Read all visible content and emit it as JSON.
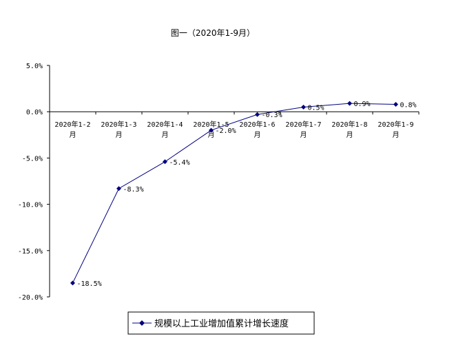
{
  "chart_data": {
    "type": "line",
    "title": "图一（2020年1-9月）",
    "categories": [
      "2020年1-2月",
      "2020年1-3月",
      "2020年1-4月",
      "2020年1-5月",
      "2020年1-6月",
      "2020年1-7月",
      "2020年1-8月",
      "2020年1-9月"
    ],
    "category_lines": [
      [
        "2020年1-2",
        "月"
      ],
      [
        "2020年1-3",
        "月"
      ],
      [
        "2020年1-4",
        "月"
      ],
      [
        "2020年1-5",
        "月"
      ],
      [
        "2020年1-6",
        "月"
      ],
      [
        "2020年1-7",
        "月"
      ],
      [
        "2020年1-8",
        "月"
      ],
      [
        "2020年1-9",
        "月"
      ]
    ],
    "series": [
      {
        "name": "规模以上工业增加值累计增长速度",
        "values": [
          -18.5,
          -8.3,
          -5.4,
          -2.0,
          -0.3,
          0.5,
          0.9,
          0.8
        ],
        "labels": [
          "-18.5%",
          "-8.3%",
          "-5.4%",
          "-2.0%",
          "-0.3%",
          "0.5%",
          "0.9%",
          "0.8%"
        ]
      }
    ],
    "ylim": [
      -20,
      5
    ],
    "y_ticks": [
      5,
      0,
      -5,
      -10,
      -15,
      -20
    ],
    "y_tick_labels": [
      "5.0%",
      "0.0%",
      "-5.0%",
      "-10.0%",
      "-15.0%",
      "-20.0%"
    ],
    "grid": false,
    "legend_position": "bottom",
    "colors": {
      "line": "#000080",
      "axis": "#000000"
    }
  }
}
